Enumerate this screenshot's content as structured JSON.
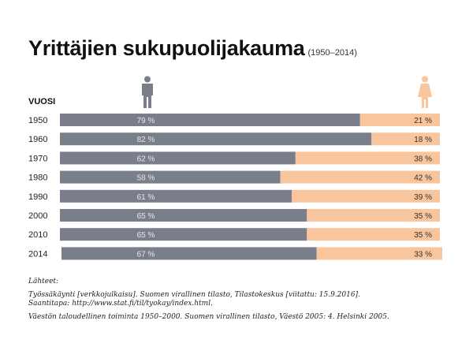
{
  "colors": {
    "male": "#7a7e8a",
    "female": "#f8c59c",
    "male_label": "#e6e6ea",
    "female_label": "#333333"
  },
  "icons": {
    "male": "male-person-icon",
    "female": "female-person-icon"
  },
  "chart_data": {
    "type": "bar",
    "stacked": true,
    "orientation": "horizontal",
    "title": "Yrittäjien sukupuolijakauma",
    "subtitle": "(1950–2014)",
    "ylabel": "VUOSI",
    "xlabel": "",
    "xlim": [
      0,
      100
    ],
    "unit": "%",
    "categories": [
      "1950",
      "1960",
      "1970",
      "1980",
      "1990",
      "2000",
      "2010",
      "2014"
    ],
    "series": [
      {
        "name": "Miehet",
        "legend_icon": "male-person-icon",
        "values": [
          79,
          82,
          62,
          58,
          61,
          65,
          65,
          67
        ],
        "labels": [
          "79 %",
          "82 %",
          "62 %",
          "58 %",
          "61 %",
          "65 %",
          "65 %",
          "67 %"
        ]
      },
      {
        "name": "Naiset",
        "legend_icon": "female-person-icon",
        "values": [
          21,
          18,
          38,
          42,
          39,
          35,
          35,
          33
        ],
        "labels": [
          "21 %",
          "18 %",
          "38 %",
          "42 %",
          "39 %",
          "35 %",
          "35 %",
          "33 %"
        ]
      }
    ],
    "grid": false
  },
  "sources": {
    "heading": "Lähteet:",
    "line1": "Työssäkäynti [verkkojulkaisu]. Suomen virallinen tilasto, Tilastokeskus [viitattu: 15.9.2016].",
    "line2": "Saantitapa: http://www.stat.fi/til/tyokay/index.html.",
    "line3": "Väestön taloudellinen toiminta 1950–2000. Suomen virallinen tilasto, Väestö 2005: 4. Helsinki 2005."
  }
}
